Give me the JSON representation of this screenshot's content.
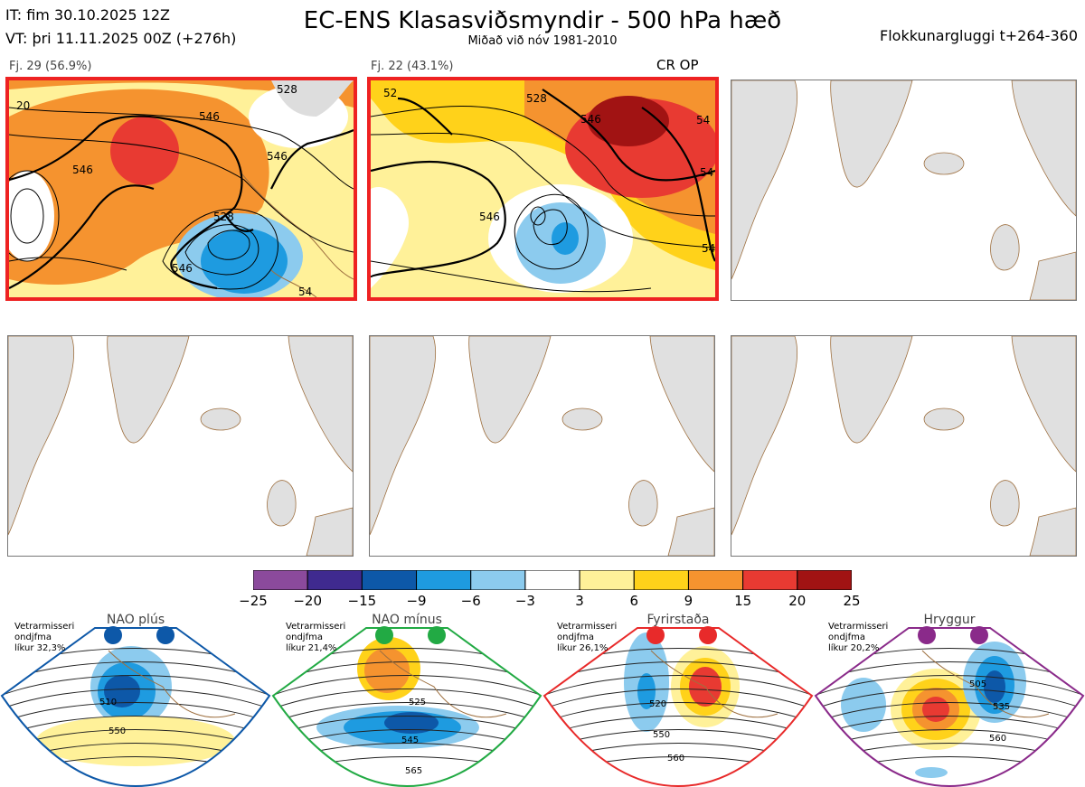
{
  "header": {
    "it_line": "IT: fim 30.10.2025 12Z",
    "vt_line": "VT: þri 11.11.2025 00Z  (+276h)",
    "title": "EC-ENS Klasasviðsmyndir - 500 hPa hæð",
    "subtitle": "Miðað við nóv 1981-2010",
    "window": "Flokkunargluggi t+264-360"
  },
  "clusters": [
    {
      "label": "Fj. 29 (56.9%)",
      "highlighted": true,
      "contours": [
        "546",
        "528",
        "546",
        "546",
        "20",
        "528",
        "546",
        "54"
      ]
    },
    {
      "label": "Fj. 22 (43.1%)",
      "highlighted": true,
      "tag": "CR OP",
      "contours": [
        "528",
        "546",
        "546",
        "54",
        "52",
        "54",
        "54"
      ]
    },
    {
      "label": "",
      "highlighted": false
    },
    {
      "label": "",
      "highlighted": false
    },
    {
      "label": "",
      "highlighted": false
    },
    {
      "label": "",
      "highlighted": false
    }
  ],
  "colorbar": {
    "colors": [
      "#8b4a9c",
      "#3f2a8f",
      "#0d58a8",
      "#1e9be0",
      "#8ccbee",
      "#ffffff",
      "#fff199",
      "#ffd21a",
      "#f5932f",
      "#e83a32",
      "#a11313"
    ],
    "labels": [
      "−25",
      "−20",
      "−15",
      "−9",
      "−6",
      "−3",
      "3",
      "6",
      "9",
      "15",
      "20",
      "25"
    ]
  },
  "regimes": [
    {
      "name": "NAO plús",
      "note_line1": "Vetrarmisseri",
      "note_line2": "ondjfma",
      "note_line3": "líkur 32,3%",
      "color": "#0d58a8",
      "contours": [
        "510",
        "550"
      ]
    },
    {
      "name": "NAO mínus",
      "note_line1": "Vetrarmisseri",
      "note_line2": "ondjfma",
      "note_line3": "líkur 21,4%",
      "color": "#22aa44",
      "contours": [
        "525",
        "545",
        "565"
      ]
    },
    {
      "name": "Fyrirstaða",
      "note_line1": "Vetrarmisseri",
      "note_line2": "ondjfma",
      "note_line3": "líkur 26,1%",
      "color": "#e82a2a",
      "contours": [
        "520",
        "550",
        "560"
      ]
    },
    {
      "name": "Hryggur",
      "note_line1": "Vetrarmisseri",
      "note_line2": "ondjfma",
      "note_line3": "líkur 20,2%",
      "color": "#8a2a8a",
      "contours": [
        "505",
        "535",
        "560"
      ]
    }
  ]
}
